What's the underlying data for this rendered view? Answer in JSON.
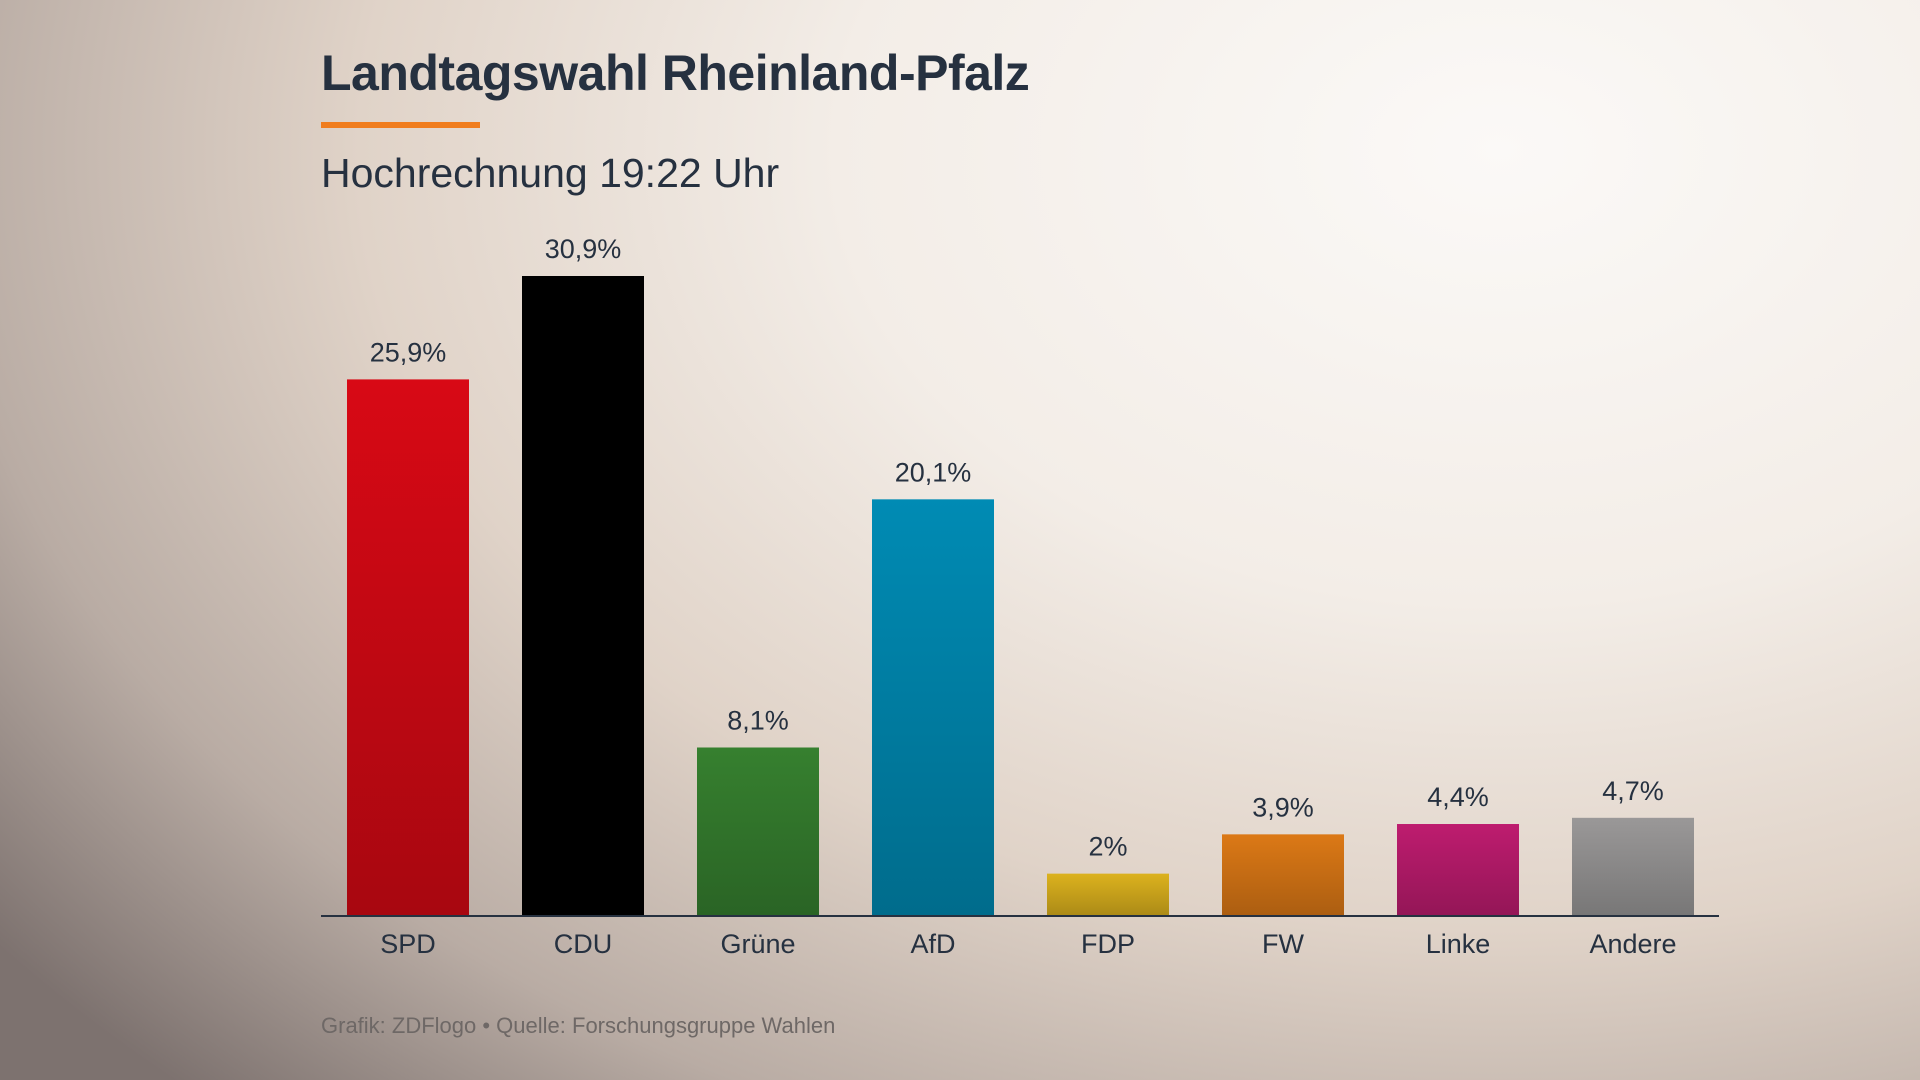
{
  "header": {
    "title": "Landtagswahl Rheinland-Pfalz",
    "accent_color": "#f07d1e",
    "subtitle": "Hochrechnung 19:22 Uhr"
  },
  "footer": {
    "source": "Grafik: ZDFlogo • Quelle: Forschungsgruppe Wahlen"
  },
  "chart_data": {
    "type": "bar",
    "title": "Landtagswahl Rheinland-Pfalz",
    "subtitle": "Hochrechnung 19:22 Uhr",
    "categories": [
      "SPD",
      "CDU",
      "Grüne",
      "AfD",
      "FDP",
      "FW",
      "Linke",
      "Andere"
    ],
    "values": [
      25.9,
      30.9,
      8.1,
      20.1,
      2,
      3.9,
      4.4,
      4.7
    ],
    "value_labels": [
      "25,9%",
      "30,9%",
      "8,1%",
      "20,1%",
      "2%",
      "3,9%",
      "4,4%",
      "4,7%"
    ],
    "colors": [
      "#d80915",
      "#000000",
      "#36802f",
      "#008bb4",
      "#dcb21e",
      "#dc7916",
      "#be1c6f",
      "#9a9898"
    ],
    "xlabel": "",
    "ylabel": "",
    "ylim": [
      0,
      30.9
    ],
    "grid": false,
    "legend": "none"
  }
}
